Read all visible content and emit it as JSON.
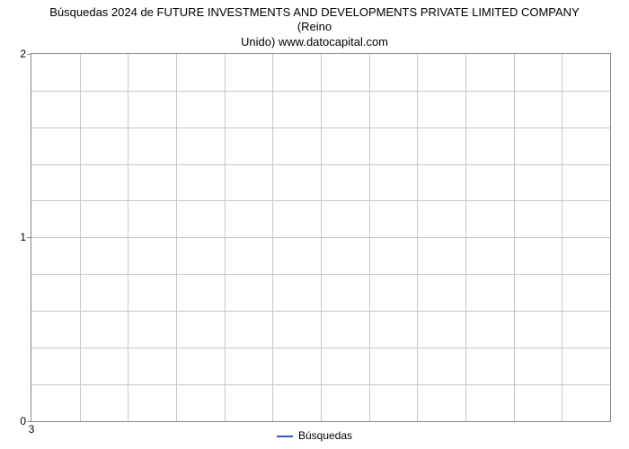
{
  "chart": {
    "type": "line",
    "title_line1": "Búsquedas 2024 de FUTURE INVESTMENTS AND DEVELOPMENTS PRIVATE LIMITED COMPANY (Reino",
    "title_line2": "Unido) www.datocapital.com",
    "title_fontsize": 13,
    "background_color": "#ffffff",
    "plot_border_color": "#888888",
    "grid_color": "#c8c8c8",
    "grid_cols": 12,
    "grid_rows": 10,
    "yaxis": {
      "min": 0,
      "max": 2,
      "ticks": [
        {
          "value": 0,
          "label": "0"
        },
        {
          "value": 1,
          "label": "1"
        },
        {
          "value": 2,
          "label": "2"
        }
      ],
      "tick_fontsize": 12
    },
    "xaxis": {
      "ticks": [
        {
          "pos": 0,
          "label": "3"
        }
      ],
      "tick_fontsize": 12
    },
    "series": [
      {
        "name": "Búsquedas",
        "color": "#3a56c4",
        "line_width": 2,
        "data": []
      }
    ],
    "legend": {
      "label": "Búsquedas",
      "color": "#3a56c4",
      "swatch_border_width": 2,
      "fontsize": 12
    }
  }
}
